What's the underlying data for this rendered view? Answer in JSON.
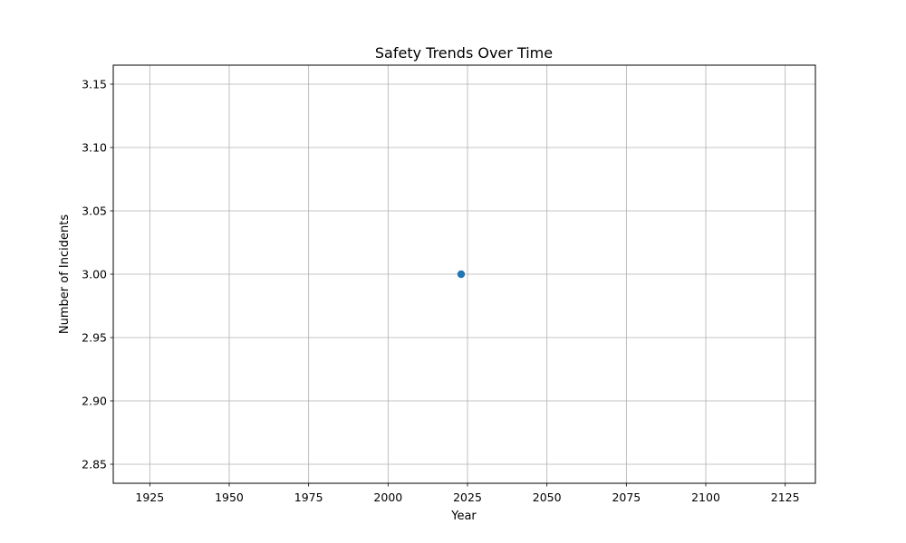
{
  "chart_data": {
    "type": "line",
    "title": "Safety Trends Over Time",
    "xlabel": "Year",
    "ylabel": "Number of Incidents",
    "xlim": [
      1913.5,
      2134.5
    ],
    "ylim": [
      2.835,
      3.165
    ],
    "xticks": [
      1925,
      1950,
      1975,
      2000,
      2025,
      2050,
      2075,
      2100,
      2125
    ],
    "yticks": [
      2.85,
      2.9,
      2.95,
      3.0,
      3.05,
      3.1,
      3.15
    ],
    "ytick_labels": [
      "2.85",
      "2.90",
      "2.95",
      "3.00",
      "3.05",
      "3.10",
      "3.15"
    ],
    "grid": true,
    "series": [
      {
        "color": "#1f77b4",
        "marker": "circle",
        "x": [
          2023
        ],
        "y": [
          3.0
        ]
      }
    ]
  }
}
